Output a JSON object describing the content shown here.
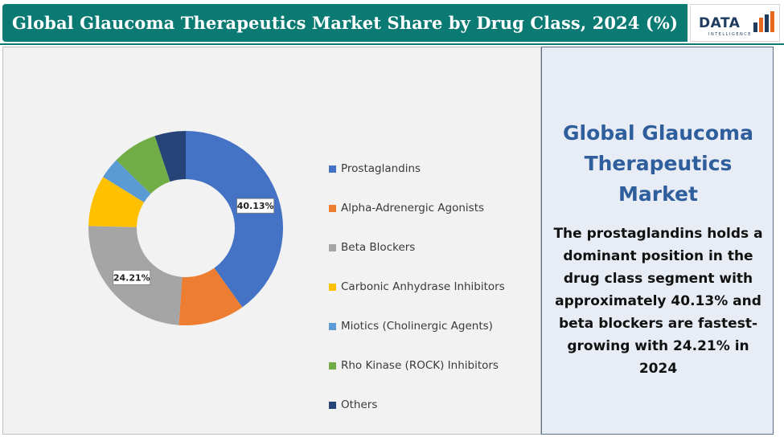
{
  "header": {
    "title": "Global Glaucoma Therapeutics Market Share by Drug Class, 2024 (%)",
    "logo_text": "DATA",
    "logo_subtext": "INTELLIGENCE"
  },
  "chart_data": {
    "type": "pie",
    "variant": "donut",
    "categories": [
      "Prostaglandins",
      "Alpha-Adrenergic Agonists",
      "Beta Blockers",
      "Carbonic Anhydrase Inhibitors",
      "Miotics (Cholinergic Agents)",
      "Rho Kinase (ROCK) Inhibitors",
      "Others"
    ],
    "values": [
      40.13,
      11.0,
      24.21,
      8.5,
      3.5,
      7.5,
      5.16
    ],
    "data_labels": [
      "40.13%",
      "",
      "24.21%",
      "",
      "",
      "",
      ""
    ],
    "colors": [
      "#4472c4",
      "#ed7d31",
      "#a5a5a5",
      "#ffc000",
      "#5b9bd5",
      "#70ad47",
      "#264478"
    ],
    "legend_position": "right",
    "start_angle": "12 o'clock, clockwise"
  },
  "side_panel": {
    "heading_lines": [
      "Global Glaucoma",
      "Therapeutics",
      "Market"
    ],
    "summary_lines": [
      "The prostaglandins holds a",
      "dominant position in the",
      "drug class segment with",
      "approximately 40.13% and",
      "beta blockers are fastest-",
      "growing with 24.21% in",
      "2024"
    ]
  }
}
